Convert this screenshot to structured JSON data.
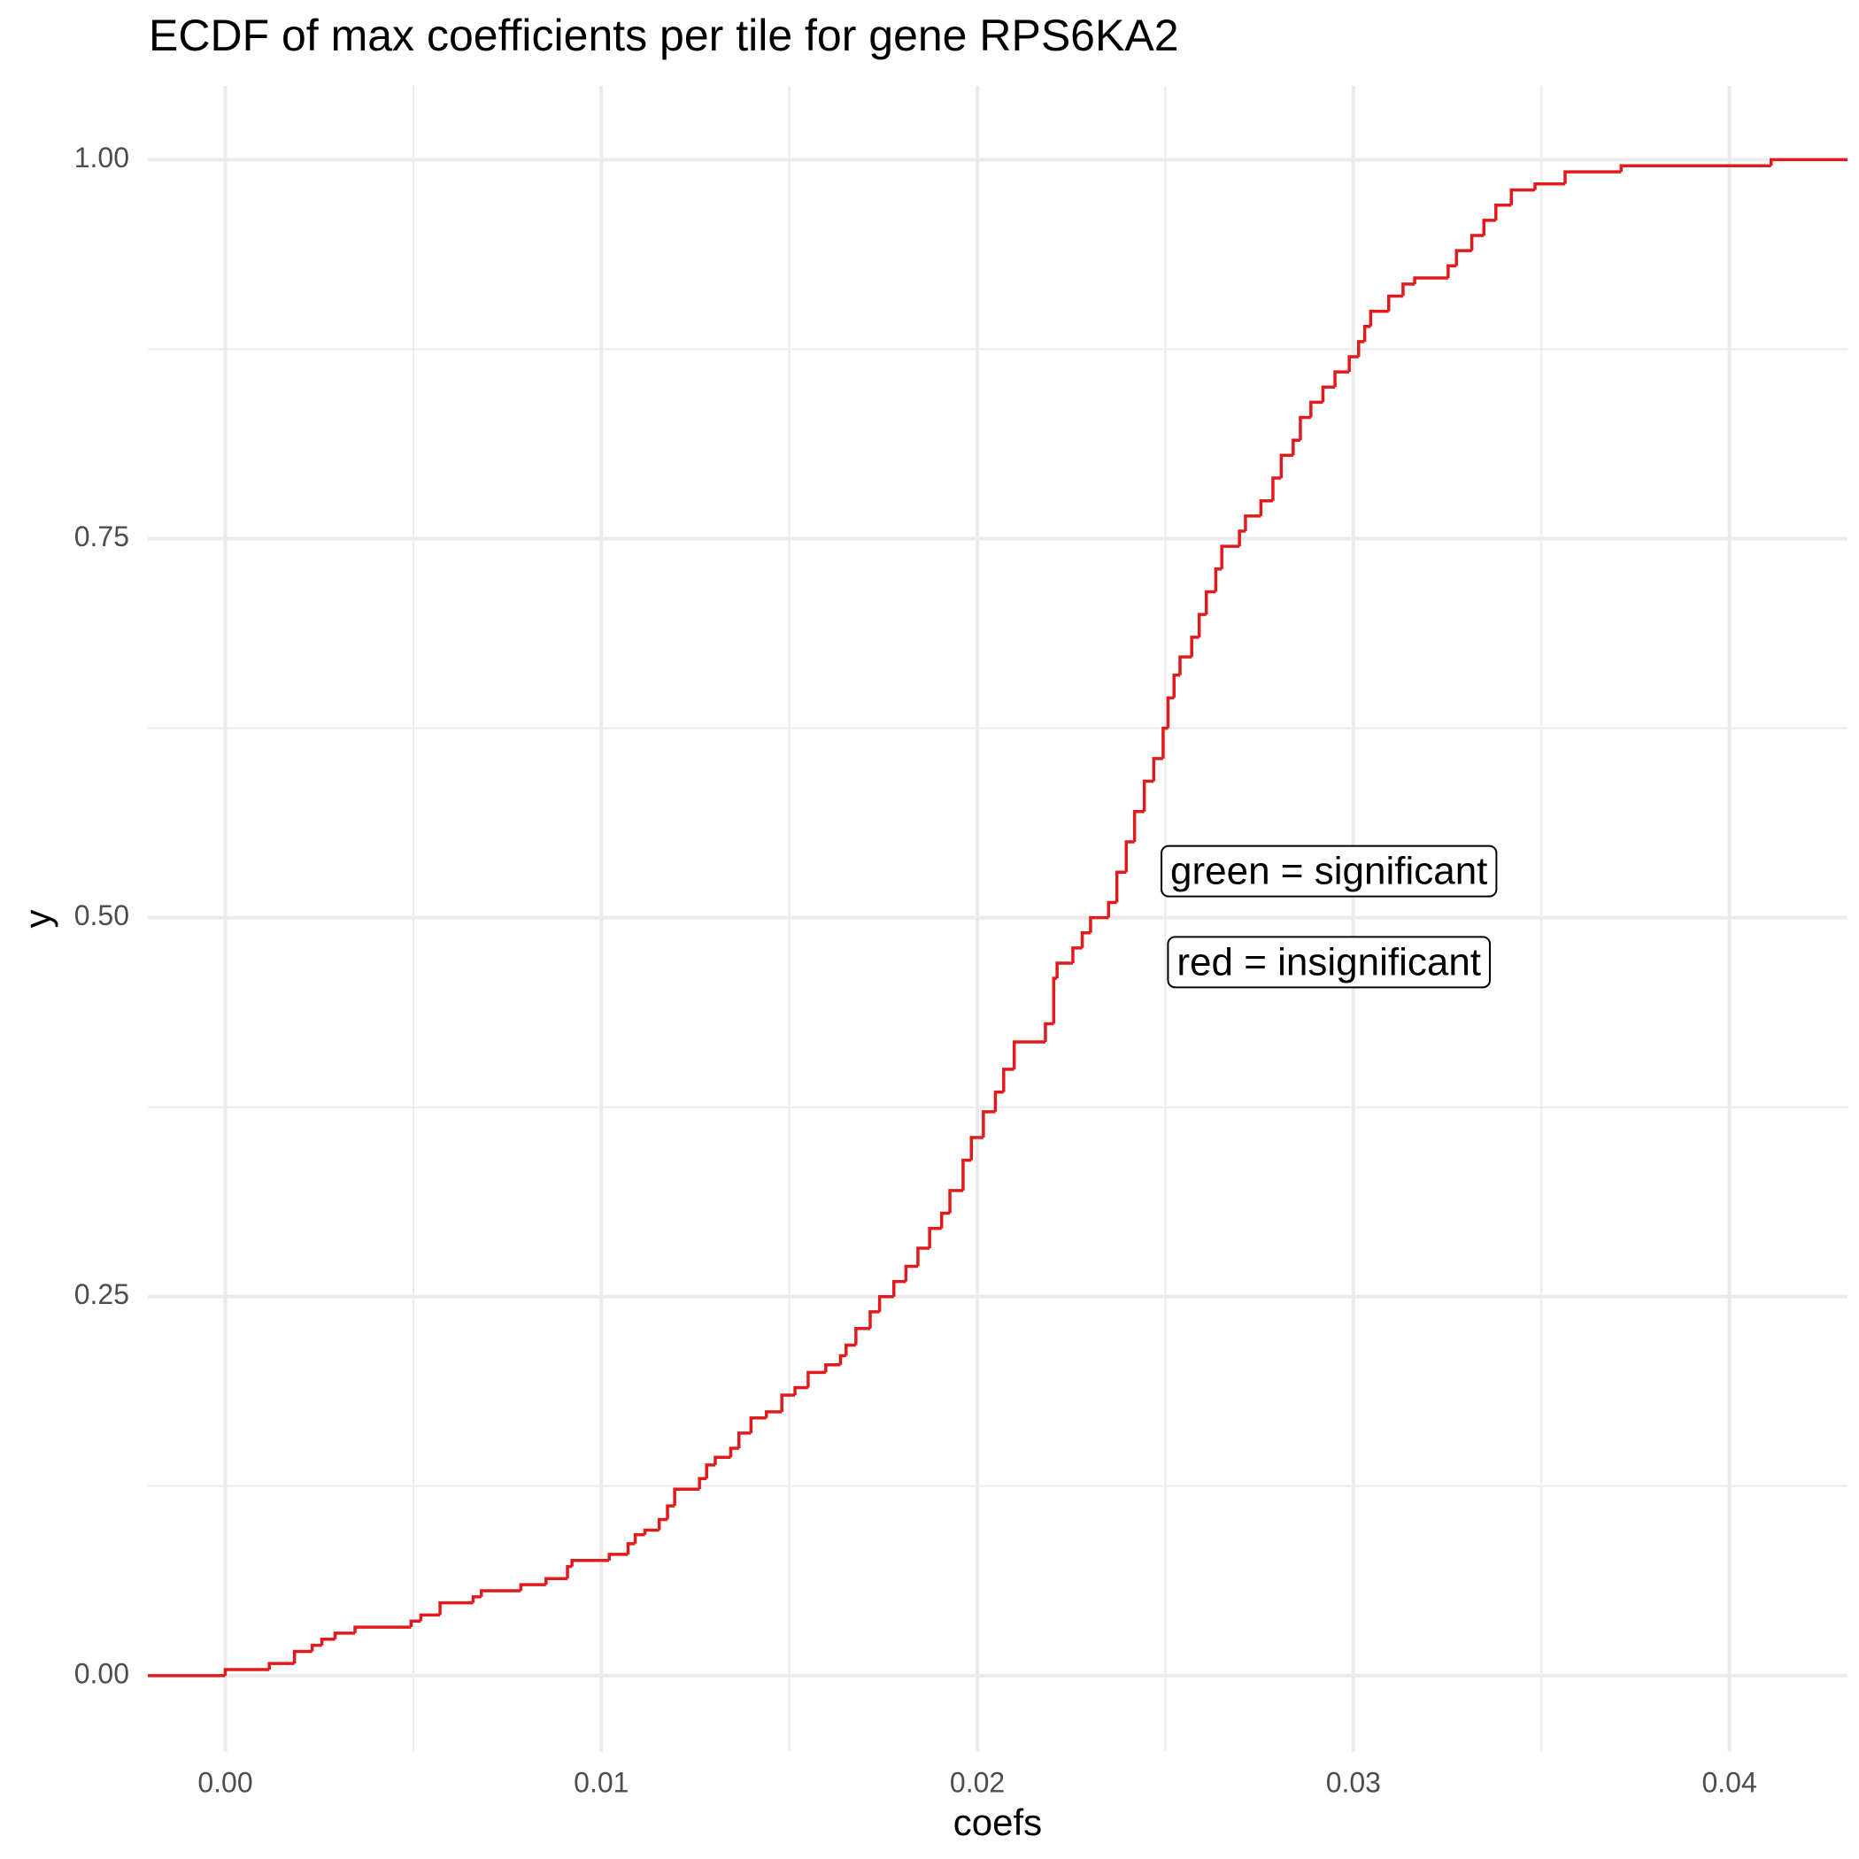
{
  "chart_data": {
    "type": "ecdf",
    "title": "ECDF of max coefficients per tile for gene RPS6KA2",
    "x_label": "coefs",
    "y_label": "y",
    "color": "#e31a1c",
    "x": [
      0,
      0.00117,
      0.00184,
      0.00231,
      0.00257,
      0.00292,
      0.00345,
      0.00494,
      0.0052,
      0.00571,
      0.00659,
      0.00681,
      0.00786,
      0.00853,
      0.0091,
      0.00922,
      0.01021,
      0.01071,
      0.0109,
      0.01116,
      0.01154,
      0.01176,
      0.01195,
      0.01261,
      0.0128,
      0.01303,
      0.01344,
      0.01366,
      0.01398,
      0.01439,
      0.0148,
      0.01515,
      0.0155,
      0.01597,
      0.01636,
      0.01651,
      0.01677,
      0.01715,
      0.0174,
      0.01778,
      0.0181,
      0.01842,
      0.01873,
      0.01905,
      0.01927,
      0.01962,
      0.01984,
      0.02016,
      0.02048,
      0.0207,
      0.02098,
      0.02181,
      0.02203,
      0.02212,
      0.02254,
      0.02279,
      0.02301,
      0.02349,
      0.02371,
      0.02396,
      0.02418,
      0.02444,
      0.02469,
      0.02494,
      0.02507,
      0.02523,
      0.02539,
      0.0257,
      0.0259,
      0.02609,
      0.02634,
      0.0265,
      0.02697,
      0.02713,
      0.02754,
      0.02786,
      0.02808,
      0.0284,
      0.02859,
      0.02887,
      0.02919,
      0.02951,
      0.02989,
      0.03014,
      0.0303,
      0.03046,
      0.03094,
      0.03132,
      0.03163,
      0.03252,
      0.03274,
      0.03315,
      0.03347,
      0.03379,
      0.0342,
      0.03483,
      0.03563,
      0.03712,
      0.04111
    ],
    "y": [
      0.004,
      0.008,
      0.016,
      0.02,
      0.024,
      0.028,
      0.032,
      0.036,
      0.04,
      0.048,
      0.052,
      0.056,
      0.06,
      0.064,
      0.072,
      0.076,
      0.08,
      0.087,
      0.093,
      0.096,
      0.103,
      0.112,
      0.123,
      0.13,
      0.139,
      0.144,
      0.15,
      0.16,
      0.17,
      0.174,
      0.185,
      0.19,
      0.2,
      0.205,
      0.211,
      0.218,
      0.229,
      0.24,
      0.25,
      0.26,
      0.27,
      0.282,
      0.295,
      0.305,
      0.32,
      0.34,
      0.355,
      0.372,
      0.385,
      0.4,
      0.418,
      0.43,
      0.46,
      0.47,
      0.48,
      0.49,
      0.5,
      0.51,
      0.53,
      0.55,
      0.57,
      0.59,
      0.605,
      0.625,
      0.645,
      0.66,
      0.672,
      0.685,
      0.7,
      0.715,
      0.73,
      0.745,
      0.755,
      0.765,
      0.775,
      0.79,
      0.805,
      0.815,
      0.83,
      0.84,
      0.85,
      0.86,
      0.87,
      0.88,
      0.89,
      0.9,
      0.91,
      0.918,
      0.922,
      0.93,
      0.94,
      0.95,
      0.96,
      0.97,
      0.98,
      0.984,
      0.992,
      0.996,
      1.0
    ],
    "xlim": [
      -0.00206,
      0.04314
    ],
    "ylim": [
      -0.0503,
      1.0487
    ],
    "xticks": [
      {
        "value": 0,
        "label": "0.00"
      },
      {
        "value": 0.01,
        "label": "0.01"
      },
      {
        "value": 0.02,
        "label": "0.02"
      },
      {
        "value": 0.03,
        "label": "0.03"
      },
      {
        "value": 0.04,
        "label": "0.04"
      }
    ],
    "yticks": [
      {
        "value": 0,
        "label": "0.00"
      },
      0.25,
      {
        "value": 0.5,
        "label": "0.50"
      },
      0.75,
      {
        "value": 1,
        "label": "1.00"
      }
    ],
    "x_minor_grid": [
      0.005,
      0.015,
      0.025,
      0.035
    ],
    "y_minor_grid": [
      0.125,
      0.375,
      0.625,
      0.875
    ],
    "grid": true,
    "annotations": [
      {
        "text": "green = significant",
        "x": 0.02935,
        "y": 0.529
      },
      {
        "text": "red = insignificant",
        "x": 0.02935,
        "y": 0.469
      }
    ]
  }
}
